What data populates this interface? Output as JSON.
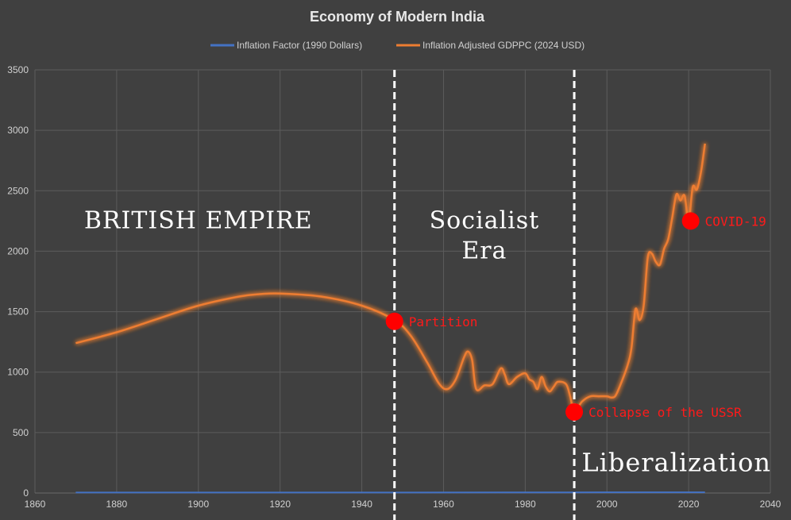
{
  "chart_data": {
    "type": "line",
    "title": "Economy of Modern India",
    "xlabel": "",
    "ylabel": "",
    "xlim": [
      1860,
      2040
    ],
    "ylim": [
      0,
      3500
    ],
    "x_ticks": [
      "1860",
      "1880",
      "1900",
      "1920",
      "1940",
      "1960",
      "1980",
      "2000",
      "2020",
      "2040"
    ],
    "y_ticks": [
      "0",
      "500",
      "1000",
      "1500",
      "2000",
      "2500",
      "3000",
      "3500"
    ],
    "grid": true,
    "legend_position": "top",
    "series": [
      {
        "name": "Inflation Factor (1990 Dollars)",
        "color": "#4472c4",
        "points": [
          [
            1870,
            4
          ],
          [
            1900,
            4
          ],
          [
            1950,
            4
          ],
          [
            1990,
            5
          ],
          [
            2024,
            6
          ]
        ]
      },
      {
        "name": "Inflation Adjusted GDPPC (2024 USD)",
        "color": "#ed7d31",
        "points": [
          [
            1870,
            1240
          ],
          [
            1880,
            1330
          ],
          [
            1890,
            1440
          ],
          [
            1900,
            1550
          ],
          [
            1910,
            1625
          ],
          [
            1915,
            1645
          ],
          [
            1920,
            1650
          ],
          [
            1930,
            1625
          ],
          [
            1940,
            1550
          ],
          [
            1948,
            1430
          ],
          [
            1952,
            1300
          ],
          [
            1956,
            1080
          ],
          [
            1959,
            900
          ],
          [
            1961,
            860
          ],
          [
            1963,
            940
          ],
          [
            1965,
            1120
          ],
          [
            1966,
            1170
          ],
          [
            1967,
            1100
          ],
          [
            1968,
            860
          ],
          [
            1970,
            890
          ],
          [
            1972,
            900
          ],
          [
            1974,
            1030
          ],
          [
            1975,
            980
          ],
          [
            1976,
            900
          ],
          [
            1978,
            960
          ],
          [
            1980,
            990
          ],
          [
            1981,
            940
          ],
          [
            1982,
            920
          ],
          [
            1983,
            860
          ],
          [
            1984,
            960
          ],
          [
            1985,
            880
          ],
          [
            1986,
            840
          ],
          [
            1987,
            880
          ],
          [
            1988,
            920
          ],
          [
            1990,
            900
          ],
          [
            1991,
            800
          ],
          [
            1992,
            680
          ],
          [
            1994,
            760
          ],
          [
            1996,
            800
          ],
          [
            1998,
            800
          ],
          [
            2000,
            800
          ],
          [
            2001,
            790
          ],
          [
            2002,
            800
          ],
          [
            2003,
            870
          ],
          [
            2005,
            1050
          ],
          [
            2006,
            1200
          ],
          [
            2007,
            1520
          ],
          [
            2008,
            1430
          ],
          [
            2009,
            1550
          ],
          [
            2010,
            1950
          ],
          [
            2011,
            1980
          ],
          [
            2012,
            1910
          ],
          [
            2013,
            1890
          ],
          [
            2014,
            2020
          ],
          [
            2015,
            2100
          ],
          [
            2016,
            2280
          ],
          [
            2017,
            2470
          ],
          [
            2018,
            2420
          ],
          [
            2019,
            2460
          ],
          [
            2020,
            2250
          ],
          [
            2021,
            2530
          ],
          [
            2022,
            2510
          ],
          [
            2023,
            2650
          ],
          [
            2024,
            2890
          ]
        ]
      }
    ],
    "eras": [
      {
        "lines": [
          "BRITISH EMPIRE"
        ],
        "x": 1900,
        "y": 2190
      },
      {
        "lines": [
          "Socialist",
          "Era"
        ],
        "x": 1970,
        "y": 2190
      },
      {
        "lines": [
          "Liberalization"
        ],
        "x": 2017,
        "y": 180
      }
    ],
    "dividers": [
      1948,
      1992
    ],
    "annotations": [
      {
        "label": "Partition",
        "x": 1948,
        "y": 1420
      },
      {
        "label": "Collapse of the USSR",
        "x": 1992,
        "y": 670
      },
      {
        "label": "COVID-19",
        "x": 2020.5,
        "y": 2250
      }
    ]
  }
}
